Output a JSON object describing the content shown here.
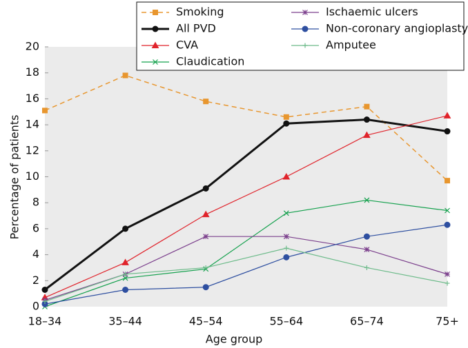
{
  "chart_data": {
    "type": "line",
    "x_label": "Age group",
    "y_label": "Percentage of patients",
    "categories": [
      "18–34",
      "35–44",
      "45–54",
      "55–64",
      "65–74",
      "75+"
    ],
    "ylim": [
      0,
      20
    ],
    "yticks": [
      0,
      2,
      4,
      6,
      8,
      10,
      12,
      14,
      16,
      18,
      20
    ],
    "legend": "top-right",
    "series": [
      {
        "name": "Smoking",
        "color": "#e8962e",
        "marker": "square",
        "linestyle": "dashed",
        "linewidth": 1.5,
        "values": [
          15.1,
          17.8,
          15.8,
          14.6,
          15.4,
          9.7
        ]
      },
      {
        "name": "All PVD",
        "color": "#111111",
        "marker": "circle",
        "linestyle": "solid",
        "linewidth": 3,
        "values": [
          1.3,
          6.0,
          9.1,
          14.1,
          14.4,
          13.5
        ]
      },
      {
        "name": "CVA",
        "color": "#e0232b",
        "marker": "triangle",
        "linestyle": "solid",
        "linewidth": 1.2,
        "values": [
          0.7,
          3.4,
          7.1,
          10.0,
          13.2,
          14.7
        ]
      },
      {
        "name": "Claudication",
        "color": "#13a04c",
        "marker": "x",
        "linestyle": "solid",
        "linewidth": 1.2,
        "values": [
          0.0,
          2.2,
          2.9,
          7.2,
          8.2,
          7.4
        ]
      },
      {
        "name": "Ischaemic ulcers",
        "color": "#7b3f8c",
        "marker": "star",
        "linestyle": "solid",
        "linewidth": 1.2,
        "values": [
          0.5,
          2.5,
          5.4,
          5.4,
          4.4,
          2.5
        ]
      },
      {
        "name": "Non-coronary angioplasty",
        "color": "#2e4fa0",
        "marker": "circle",
        "linestyle": "solid",
        "linewidth": 1.2,
        "values": [
          0.2,
          1.3,
          1.5,
          3.8,
          5.4,
          6.3
        ]
      },
      {
        "name": "Amputee",
        "color": "#6dbb8a",
        "marker": "plus",
        "linestyle": "solid",
        "linewidth": 1.2,
        "values": [
          0.4,
          2.5,
          3.0,
          4.5,
          3.0,
          1.8
        ]
      }
    ]
  }
}
